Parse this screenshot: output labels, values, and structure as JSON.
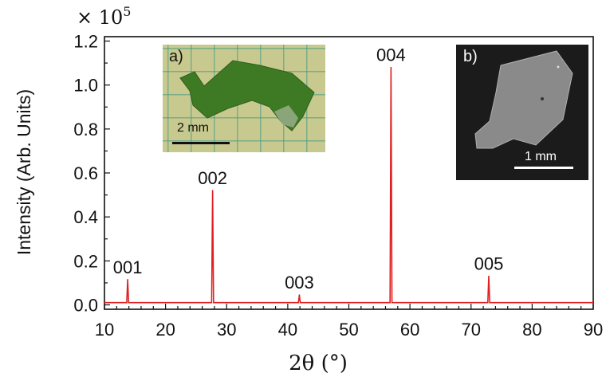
{
  "chart_data": {
    "type": "line",
    "xlabel": "2θ (°)",
    "ylabel": "Intensity (Arb. Units)",
    "y_multiplier": "× 10",
    "y_multiplier_exp": "5",
    "xlim": [
      10,
      90
    ],
    "ylim": [
      -0.02,
      1.22
    ],
    "x_ticks": [
      10,
      20,
      30,
      40,
      50,
      60,
      70,
      80,
      90
    ],
    "x_tick_labels": [
      "10",
      "20",
      "30",
      "40",
      "50",
      "60",
      "70",
      "80",
      "90"
    ],
    "y_ticks": [
      0.0,
      0.2,
      0.4,
      0.6,
      0.8,
      1.0,
      1.2
    ],
    "y_tick_labels": [
      "0.0",
      "0.2",
      "0.4",
      "0.6",
      "0.8",
      "1.0",
      "1.2"
    ],
    "baseline": 0.01,
    "series": [
      {
        "color": "#e02020",
        "peaks": [
          {
            "x": 13.8,
            "y": 0.115,
            "label": "001"
          },
          {
            "x": 27.7,
            "y": 0.52,
            "label": "002"
          },
          {
            "x": 41.9,
            "y": 0.045,
            "label": "003"
          },
          {
            "x": 56.9,
            "y": 1.08,
            "label": "004"
          },
          {
            "x": 72.9,
            "y": 0.13,
            "label": "005"
          }
        ]
      }
    ],
    "grid": false
  },
  "insets": {
    "a": {
      "label": "a)",
      "scale": "2 mm"
    },
    "b": {
      "label": "b)",
      "scale": "1 mm"
    }
  }
}
